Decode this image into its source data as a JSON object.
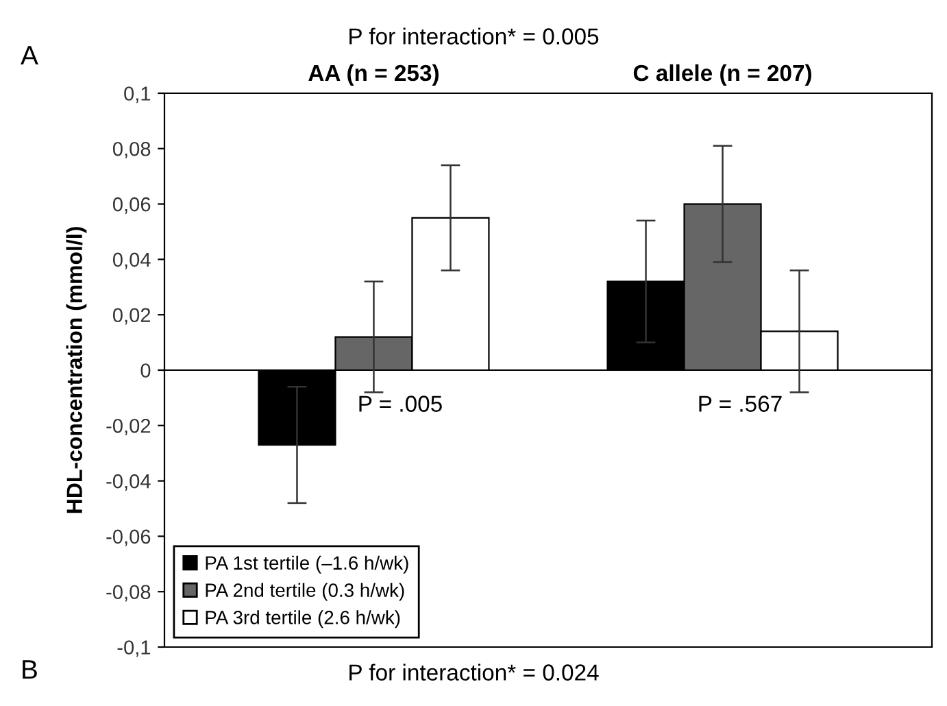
{
  "chart_data": {
    "type": "bar",
    "title": "P for interaction* = 0.005",
    "ylabel": "HDL-concentration (mmol/l)",
    "categories": [
      "AA (n = 253)",
      "C allele (n = 207)"
    ],
    "series": [
      {
        "name": "PA 1st tertile (–1.6 h/wk)",
        "color": "#000000",
        "values": [
          -0.027,
          0.032
        ],
        "errors": [
          0.021,
          0.022
        ]
      },
      {
        "name": "PA 2nd tertile (0.3 h/wk)",
        "color": "#666666",
        "values": [
          0.012,
          0.06
        ],
        "errors": [
          0.02,
          0.021
        ]
      },
      {
        "name": "PA 3rd tertile (2.6 h/wk)",
        "color": "#ffffff",
        "values": [
          0.055,
          0.014
        ],
        "errors": [
          0.019,
          0.022
        ]
      }
    ],
    "ylim": [
      -0.1,
      0.1
    ],
    "yticks": [
      {
        "value": -0.1,
        "label": "-0,1"
      },
      {
        "value": -0.08,
        "label": "-0,08"
      },
      {
        "value": -0.06,
        "label": "-0,06"
      },
      {
        "value": -0.04,
        "label": "-0,04"
      },
      {
        "value": -0.02,
        "label": "-0,02"
      },
      {
        "value": 0,
        "label": "0"
      },
      {
        "value": 0.02,
        "label": "0,02"
      },
      {
        "value": 0.04,
        "label": "0,04"
      },
      {
        "value": 0.06,
        "label": "0,06"
      },
      {
        "value": 0.08,
        "label": "0,08"
      },
      {
        "value": 0.1,
        "label": "0,1"
      }
    ],
    "ref_lines": [
      {
        "axis": "y",
        "value": 0,
        "label": null,
        "color": "#000000"
      }
    ],
    "annotations": [
      "A",
      "P = .005",
      "P = .567",
      "B",
      "P for interaction* = 0.024"
    ],
    "legend": "bottom left",
    "grid": false
  }
}
